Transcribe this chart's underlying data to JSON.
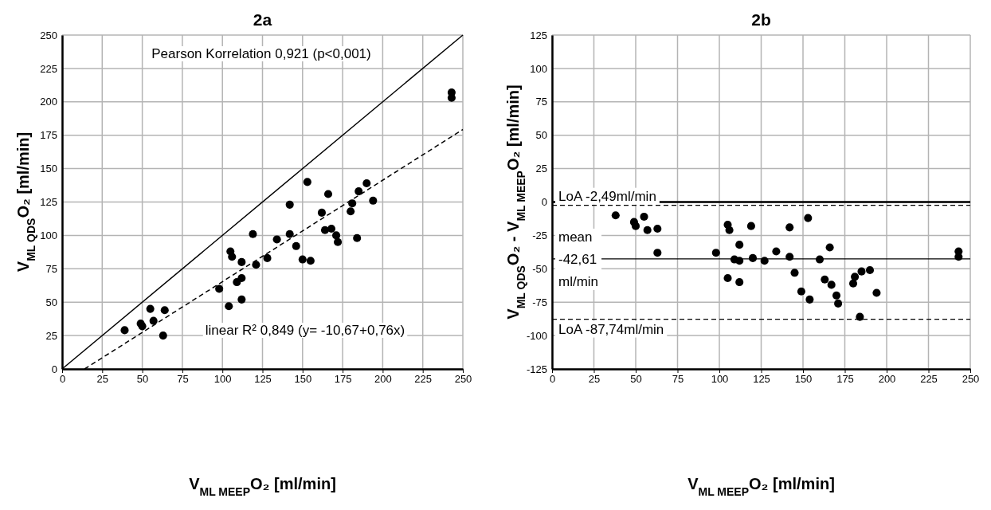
{
  "chart_data": [
    {
      "type": "scatter",
      "title": "2a",
      "xlabel": "V$_{ML MEEP}$O₂ [ml/min]",
      "ylabel": "V$_{ML QDS}$O₂ [ml/min]",
      "xlim": [
        0,
        250
      ],
      "ylim": [
        0,
        250
      ],
      "xticks": [
        0,
        25,
        50,
        75,
        100,
        125,
        150,
        175,
        200,
        225,
        250
      ],
      "yticks": [
        0,
        25,
        50,
        75,
        100,
        125,
        150,
        175,
        200,
        225,
        250
      ],
      "grid": true,
      "marker": "circle",
      "annotations": [
        "Pearson Korrelation 0,921 (p<0,001)",
        "linear R² 0,849 (y= -10,67+0,76x)"
      ],
      "series": [
        {
          "color": "#000000",
          "x": [
            39,
            49,
            50,
            55,
            57,
            63,
            64,
            98,
            104,
            105,
            106,
            109,
            112,
            112,
            112,
            119,
            121,
            128,
            134,
            142,
            142,
            146,
            150,
            153,
            155,
            162,
            164,
            166,
            168,
            171,
            172,
            180,
            181,
            184,
            185,
            190,
            194,
            243,
            243
          ],
          "values": [
            29,
            34,
            32,
            45,
            36,
            25,
            44,
            60,
            47,
            88,
            84,
            65,
            80,
            68,
            52,
            101,
            78,
            83,
            97,
            123,
            101,
            92,
            82,
            140,
            81,
            117,
            104,
            131,
            105,
            100,
            95,
            118,
            124,
            98,
            133,
            139,
            126,
            207,
            203
          ]
        },
        {
          "type": "line",
          "color": "#000000",
          "line_style": "solid",
          "marker": "none",
          "x": [
            0,
            250
          ],
          "values": [
            0,
            250
          ]
        },
        {
          "type": "line",
          "color": "#000000",
          "line_style": "dashed",
          "marker": "none",
          "x": [
            14,
            250
          ],
          "values": [
            0,
            179.3
          ]
        }
      ]
    },
    {
      "type": "scatter",
      "title": "2b",
      "xlabel": "V$_{ML MEEP}$O₂ [ml/min]",
      "ylabel": "V$_{ML QDS}$O₂ - V$_{ML MEEP}$O₂ [ml/min]",
      "xlim": [
        0,
        250
      ],
      "ylim": [
        -125,
        125
      ],
      "xticks": [
        0,
        25,
        50,
        75,
        100,
        125,
        150,
        175,
        200,
        225,
        250
      ],
      "yticks": [
        -125,
        -100,
        -75,
        -50,
        -25,
        0,
        25,
        50,
        75,
        100,
        125
      ],
      "grid": true,
      "marker": "circle",
      "ref_lines": [
        {
          "axis": "y",
          "value": 0,
          "label": null,
          "color": "#000000",
          "line_style": "solid"
        },
        {
          "axis": "y",
          "value": -2.49,
          "label": "LoA -2,49ml/min",
          "color": "#000000",
          "line_style": "dashed"
        },
        {
          "axis": "y",
          "value": -42.61,
          "label": "mean -42,61 ml/min",
          "color": "#000000",
          "line_style": "solid"
        },
        {
          "axis": "y",
          "value": -87.74,
          "label": "LoA -87,74ml/min",
          "color": "#000000",
          "line_style": "dashed"
        }
      ],
      "series": [
        {
          "color": "#000000",
          "x": [
            38,
            49,
            50,
            55,
            57,
            63,
            63,
            98,
            105,
            105,
            106,
            109,
            112,
            112,
            112,
            119,
            120,
            127,
            134,
            142,
            142,
            145,
            149,
            153,
            154,
            160,
            163,
            166,
            167,
            170,
            171,
            180,
            181,
            184,
            185,
            190,
            194,
            243,
            243
          ],
          "values": [
            -10,
            -15,
            -18,
            -11,
            -21,
            -20,
            -38,
            -38,
            -17,
            -57,
            -21,
            -43,
            -44,
            -32,
            -60,
            -18,
            -42,
            -44,
            -37,
            -19,
            -41,
            -53,
            -67,
            -12,
            -73,
            -43,
            -58,
            -34,
            -62,
            -70,
            -76,
            -61,
            -56,
            -86,
            -52,
            -51,
            -68,
            -37,
            -41
          ]
        }
      ]
    }
  ]
}
